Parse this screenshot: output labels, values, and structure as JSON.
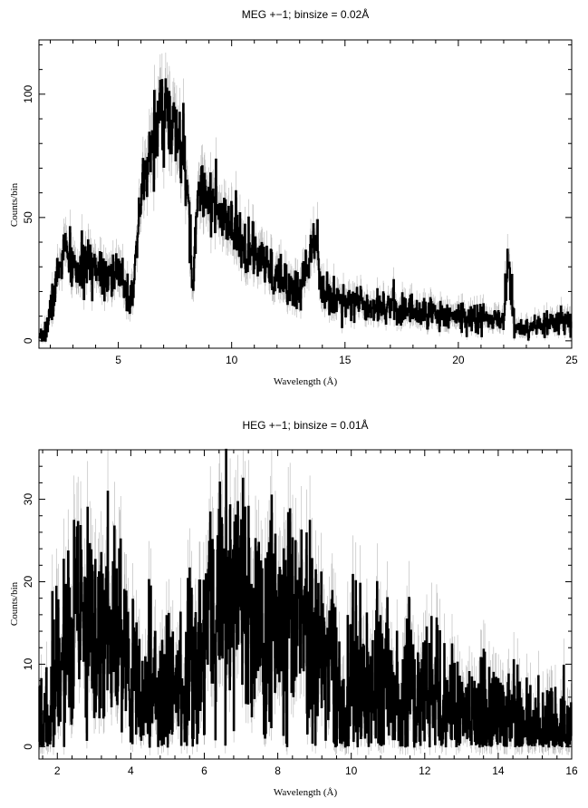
{
  "chart_data": [
    {
      "type": "line",
      "title": "MEG +−1; binsize = 0.02Å",
      "xlabel": "Wavelength (Å)",
      "ylabel": "Counts/bin",
      "xlim": [
        1.5,
        25
      ],
      "ylim": [
        -3,
        122
      ],
      "x_ticks": [
        5,
        10,
        15,
        20,
        25
      ],
      "y_ticks": [
        0,
        50,
        100
      ],
      "binsize": 0.02,
      "error_bars": true,
      "grid": false,
      "series": [
        {
          "x": [
            1.5,
            1.8,
            2.0,
            2.3,
            2.6,
            2.8,
            3.2,
            3.6,
            4.0,
            4.5,
            5.0,
            5.3,
            5.5,
            5.6,
            5.8,
            6.0,
            6.3,
            6.6,
            6.9,
            7.1,
            7.3,
            7.6,
            7.9,
            8.1,
            8.3,
            8.5,
            8.8,
            9.2,
            9.6,
            10.0,
            10.5,
            11.0,
            11.5,
            12.0,
            13.0,
            13.75,
            14.0,
            15.0,
            16.0,
            17.0,
            18.0,
            19.0,
            20.0,
            21.0,
            22.0,
            22.2,
            22.5,
            23.0,
            24.0,
            25.0
          ],
          "values": [
            0,
            4,
            12,
            25,
            38,
            33,
            28,
            30,
            31,
            28,
            26,
            24,
            16,
            23,
            30,
            58,
            70,
            86,
            92,
            95,
            87,
            82,
            75,
            52,
            20,
            60,
            64,
            55,
            48,
            45,
            38,
            35,
            30,
            25,
            20,
            46,
            18,
            17,
            15,
            14,
            12,
            11,
            10,
            9,
            8,
            34,
            5,
            4,
            7,
            8
          ]
        }
      ]
    },
    {
      "type": "line",
      "title": "HEG +−1; binsize = 0.01Å",
      "xlabel": "Wavelength (Å)",
      "ylabel": "Counts/bin",
      "xlim": [
        1.5,
        16
      ],
      "ylim": [
        -1.5,
        36
      ],
      "x_ticks": [
        2,
        4,
        6,
        8,
        10,
        12,
        14,
        16
      ],
      "y_ticks": [
        0,
        10,
        20,
        30
      ],
      "binsize": 0.01,
      "error_bars": true,
      "grid": false,
      "series": [
        {
          "x": [
            1.5,
            1.8,
            2.0,
            2.5,
            3.0,
            3.5,
            3.9,
            4.0,
            4.5,
            5.0,
            5.5,
            5.8,
            6.1,
            6.5,
            6.9,
            7.3,
            7.8,
            8.3,
            8.7,
            9.0,
            9.5,
            9.85,
            10.0,
            11.0,
            12.0,
            13.0,
            14.0,
            15.0,
            16.0
          ],
          "values": [
            2,
            3,
            12,
            14,
            14,
            13,
            12,
            7,
            7,
            6,
            7,
            12,
            17,
            18,
            19,
            16,
            14,
            17,
            15,
            11,
            9,
            2,
            8,
            7,
            6,
            4,
            3,
            2,
            1
          ]
        }
      ]
    }
  ]
}
